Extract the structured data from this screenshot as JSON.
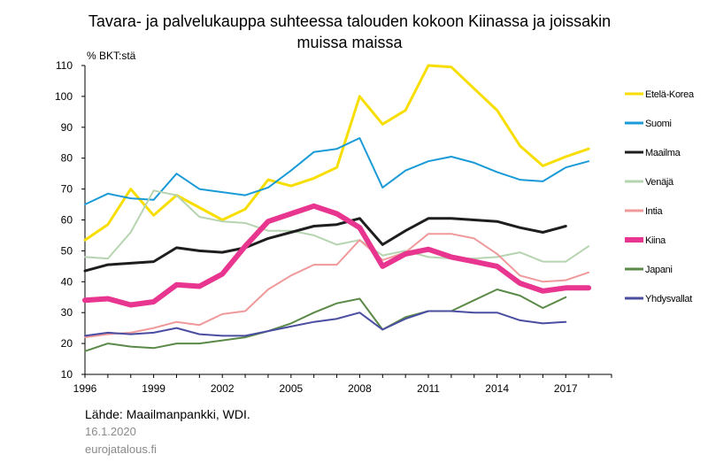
{
  "chart_data": {
    "type": "line",
    "title_line1": "Tavara- ja palvelukauppa suhteessa talouden kokoon Kiinassa ja joissakin",
    "title_line2": "muissa maissa",
    "ylabel": "% BKT:stä",
    "xlabel": "",
    "xlim": [
      1996,
      2019
    ],
    "ylim": [
      10,
      110
    ],
    "yticks": [
      10,
      20,
      30,
      40,
      50,
      60,
      70,
      80,
      90,
      100,
      110
    ],
    "xticks": [
      1996,
      1999,
      2002,
      2005,
      2008,
      2011,
      2014,
      2017
    ],
    "grid": false,
    "legend_position": "right",
    "series": [
      {
        "name": "Etelä-Korea",
        "color": "#f7de00",
        "width": 3,
        "x": [
          1996,
          1997,
          1998,
          1999,
          2000,
          2001,
          2002,
          2003,
          2004,
          2005,
          2006,
          2007,
          2008,
          2009,
          2010,
          2011,
          2012,
          2013,
          2014,
          2015,
          2016,
          2017,
          2018
        ],
        "values": [
          53.5,
          58.5,
          70,
          61.5,
          68,
          64,
          60,
          63.5,
          73,
          71,
          73.5,
          77,
          100,
          91,
          95.5,
          110,
          109.5,
          102.5,
          95.5,
          84,
          77.5,
          80.5,
          83
        ]
      },
      {
        "name": "Suomi",
        "color": "#1a9bd7",
        "width": 2,
        "x": [
          1996,
          1997,
          1998,
          1999,
          2000,
          2001,
          2002,
          2003,
          2004,
          2005,
          2006,
          2007,
          2008,
          2009,
          2010,
          2011,
          2012,
          2013,
          2014,
          2015,
          2016,
          2017,
          2018
        ],
        "values": [
          65,
          68.5,
          67,
          66.5,
          75,
          70,
          69,
          68,
          70.5,
          76,
          82,
          83,
          86.5,
          70.5,
          76,
          79,
          80.5,
          78.5,
          75.5,
          73,
          72.5,
          77,
          79
        ]
      },
      {
        "name": "Maailma",
        "color": "#1e1e1e",
        "width": 3,
        "x": [
          1996,
          1997,
          1998,
          1999,
          2000,
          2001,
          2002,
          2003,
          2004,
          2005,
          2006,
          2007,
          2008,
          2009,
          2010,
          2011,
          2012,
          2013,
          2014,
          2015,
          2016,
          2017
        ],
        "values": [
          43.5,
          45.5,
          46,
          46.5,
          51,
          50,
          49.5,
          51,
          54,
          56,
          58,
          58.5,
          60.5,
          52,
          56.5,
          60.5,
          60.5,
          60,
          59.5,
          57.5,
          56,
          58
        ]
      },
      {
        "name": "Venäjä",
        "color": "#b6d4b0",
        "width": 2,
        "x": [
          1996,
          1997,
          1998,
          1999,
          2000,
          2001,
          2002,
          2003,
          2004,
          2005,
          2006,
          2007,
          2008,
          2009,
          2010,
          2011,
          2012,
          2013,
          2014,
          2015,
          2016,
          2017,
          2018
        ],
        "values": [
          48,
          47.5,
          56,
          69.5,
          68,
          61,
          59.5,
          59,
          56.5,
          56.5,
          55,
          52,
          53.5,
          48.5,
          50,
          48,
          47.5,
          47.5,
          48,
          49.5,
          46.5,
          46.5,
          51.5
        ]
      },
      {
        "name": "Intia",
        "color": "#f0999b",
        "width": 2,
        "x": [
          1996,
          1997,
          1998,
          1999,
          2000,
          2001,
          2002,
          2003,
          2004,
          2005,
          2006,
          2007,
          2008,
          2009,
          2010,
          2011,
          2012,
          2013,
          2014,
          2015,
          2016,
          2017,
          2018
        ],
        "values": [
          22,
          23,
          23.5,
          25,
          27,
          26,
          29.5,
          30.5,
          37.5,
          42,
          45.5,
          45.5,
          53.5,
          47,
          49.5,
          55.5,
          55.5,
          54,
          49,
          42,
          40,
          40.5,
          43
        ]
      },
      {
        "name": "Kiina",
        "color": "#e8358f",
        "width": 6,
        "x": [
          1996,
          1997,
          1998,
          1999,
          2000,
          2001,
          2002,
          2003,
          2004,
          2005,
          2006,
          2007,
          2008,
          2009,
          2010,
          2011,
          2012,
          2013,
          2014,
          2015,
          2016,
          2017,
          2018
        ],
        "values": [
          34,
          34.5,
          32.5,
          33.5,
          39,
          38.5,
          42.5,
          51.5,
          59.5,
          62,
          64.5,
          62,
          57.5,
          45,
          49,
          50.5,
          48,
          46.5,
          45,
          39.5,
          37,
          38,
          38
        ]
      },
      {
        "name": "Japani",
        "color": "#5b8a48",
        "width": 2,
        "x": [
          1996,
          1997,
          1998,
          1999,
          2000,
          2001,
          2002,
          2003,
          2004,
          2005,
          2006,
          2007,
          2008,
          2009,
          2010,
          2011,
          2012,
          2013,
          2014,
          2015,
          2016,
          2017
        ],
        "values": [
          17.5,
          20,
          19,
          18.5,
          20,
          20,
          21,
          22,
          24,
          26.5,
          30,
          33,
          34.5,
          24.5,
          28.5,
          30.5,
          30.5,
          34,
          37.5,
          35.5,
          31.5,
          35
        ]
      },
      {
        "name": "Yhdysvallat",
        "color": "#4a4ea0",
        "width": 2,
        "x": [
          1996,
          1997,
          1998,
          1999,
          2000,
          2001,
          2002,
          2003,
          2004,
          2005,
          2006,
          2007,
          2008,
          2009,
          2010,
          2011,
          2012,
          2013,
          2014,
          2015,
          2016,
          2017
        ],
        "values": [
          22.5,
          23.5,
          23,
          23.5,
          25,
          23,
          22.5,
          22.5,
          24,
          25.5,
          27,
          28,
          30,
          24.5,
          28,
          30.5,
          30.5,
          30,
          30,
          27.5,
          26.5,
          27
        ]
      }
    ]
  },
  "footer": {
    "source": "Lähde: Maailmanpankki, WDI.",
    "date": "16.1.2020",
    "site": "eurojatalous.fi"
  }
}
